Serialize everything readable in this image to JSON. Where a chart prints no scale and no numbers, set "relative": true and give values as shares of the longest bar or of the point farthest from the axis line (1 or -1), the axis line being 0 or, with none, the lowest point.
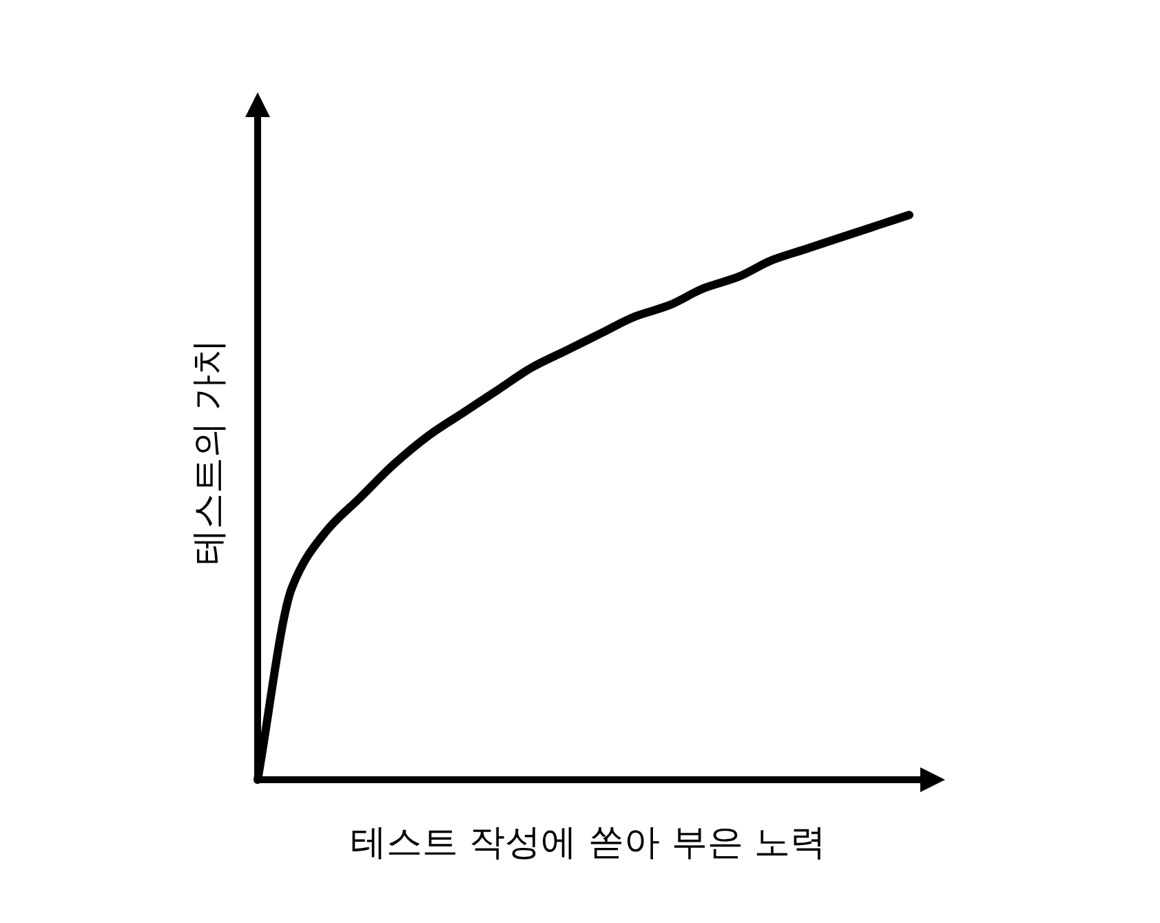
{
  "chart_data": {
    "type": "line",
    "relative": true,
    "xlabel": "테스트 작성에 쏟아 부은 노력",
    "ylabel": "테스트의 가치",
    "categories": [
      null,
      null,
      null,
      null,
      null,
      null,
      null,
      null,
      null,
      null,
      null,
      null,
      null,
      null,
      null,
      null,
      null,
      null,
      null,
      null
    ],
    "values": [
      0,
      0.34,
      0.44,
      0.5,
      0.56,
      0.61,
      0.65,
      0.69,
      0.73,
      0.76,
      0.79,
      0.82,
      0.84,
      0.87,
      0.89,
      0.92,
      0.94,
      0.96,
      0.98,
      1
    ],
    "color": "#000000"
  }
}
